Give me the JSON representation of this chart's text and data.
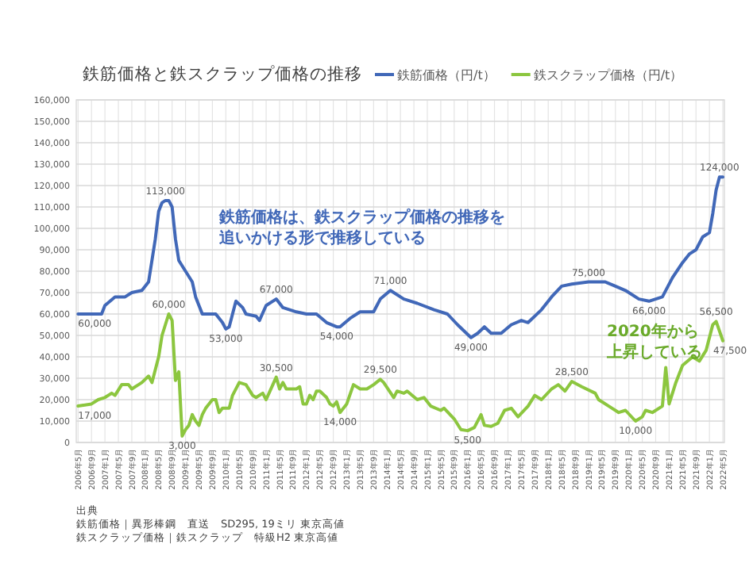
{
  "chart_data": {
    "type": "line",
    "title": "鉄筋価格と鉄スクラップ価格の推移",
    "xlim": [
      "2006-04-15",
      "2022-05-15"
    ],
    "xticks": [
      {
        "value": "2006-05",
        "label": "2006年5月"
      },
      {
        "value": "2006-09",
        "label": "2006年9月"
      },
      {
        "value": "2007-01",
        "label": "2007年1月"
      },
      {
        "value": "2007-05",
        "label": "2007年5月"
      },
      {
        "value": "2007-09",
        "label": "2007年9月"
      },
      {
        "value": "2008-01",
        "label": "2008年1月"
      },
      {
        "value": "2008-05",
        "label": "2008年5月"
      },
      {
        "value": "2008-09",
        "label": "2008年9月"
      },
      {
        "value": "2009-01",
        "label": "2009年1月"
      },
      {
        "value": "2009-05",
        "label": "2009年5月"
      },
      {
        "value": "2009-09",
        "label": "2009年9月"
      },
      {
        "value": "2010-01",
        "label": "2010年1月"
      },
      {
        "value": "2010-05",
        "label": "2010年5月"
      },
      {
        "value": "2010-09",
        "label": "2010年9月"
      },
      {
        "value": "2011-01",
        "label": "2011年1月"
      },
      {
        "value": "2011-05",
        "label": "2011年5月"
      },
      {
        "value": "2011-09",
        "label": "2011年9月"
      },
      {
        "value": "2012-01",
        "label": "2012年1月"
      },
      {
        "value": "2012-05",
        "label": "2012年5月"
      },
      {
        "value": "2012-09",
        "label": "2012年9月"
      },
      {
        "value": "2013-01",
        "label": "2013年1月"
      },
      {
        "value": "2013-05",
        "label": "2013年5月"
      },
      {
        "value": "2013-09",
        "label": "2013年9月"
      },
      {
        "value": "2014-01",
        "label": "2014年1月"
      },
      {
        "value": "2014-05",
        "label": "2014年5月"
      },
      {
        "value": "2014-09",
        "label": "2014年9月"
      },
      {
        "value": "2015-01",
        "label": "2015年1月"
      },
      {
        "value": "2015-05",
        "label": "2015年5月"
      },
      {
        "value": "2015-09",
        "label": "2015年9月"
      },
      {
        "value": "2016-01",
        "label": "2016年1月"
      },
      {
        "value": "2016-05",
        "label": "2016年5月"
      },
      {
        "value": "2016-09",
        "label": "2016年9月"
      },
      {
        "value": "2017-01",
        "label": "2017年1月"
      },
      {
        "value": "2017-05",
        "label": "2017年5月"
      },
      {
        "value": "2017-09",
        "label": "2017年9月"
      },
      {
        "value": "2018-01",
        "label": "2018年1月"
      },
      {
        "value": "2018-05",
        "label": "2018年5月"
      },
      {
        "value": "2018-09",
        "label": "2018年9月"
      },
      {
        "value": "2019-01",
        "label": "2019年1月"
      },
      {
        "value": "2019-05",
        "label": "2019年5月"
      },
      {
        "value": "2019-09",
        "label": "2019年9月"
      },
      {
        "value": "2020-01",
        "label": "2020年1月"
      },
      {
        "value": "2020-05",
        "label": "2020年5月"
      },
      {
        "value": "2020-09",
        "label": "2020年9月"
      },
      {
        "value": "2021-01",
        "label": "2021年1月"
      },
      {
        "value": "2021-05",
        "label": "2021年5月"
      },
      {
        "value": "2021-09",
        "label": "2021年9月"
      },
      {
        "value": "2022-01",
        "label": "2022年1月"
      },
      {
        "value": "2022-05",
        "label": "2022年5月"
      }
    ],
    "ylim": [
      0,
      160000
    ],
    "yticks": [
      0,
      {
        "value": 10000,
        "label": "10,000"
      },
      {
        "value": 20000,
        "label": "20,000"
      },
      {
        "value": 30000,
        "label": "30,000"
      },
      {
        "value": 40000,
        "label": "40,000"
      },
      {
        "value": 50000,
        "label": "50,000"
      },
      {
        "value": 60000,
        "label": "60,000"
      },
      {
        "value": 70000,
        "label": "70,000"
      },
      {
        "value": 80000,
        "label": "80,000"
      },
      {
        "value": 90000,
        "label": "90,000"
      },
      {
        "value": 100000,
        "label": "100,000"
      },
      {
        "value": 110000,
        "label": "110,000"
      },
      {
        "value": 120000,
        "label": "120,000"
      },
      {
        "value": 130000,
        "label": "130,000"
      },
      {
        "value": 140000,
        "label": "140,000"
      },
      {
        "value": 150000,
        "label": "150,000"
      },
      {
        "value": 160000,
        "label": "160,000"
      }
    ],
    "grid": true,
    "legend": "top",
    "marker": "none",
    "line_style": "solid",
    "series": [
      {
        "name": "鉄筋価格（円/t）",
        "color": "#4168b8",
        "x": [
          "2006-05",
          "2006-12",
          "2007-01",
          "2007-04",
          "2007-07",
          "2007-09",
          "2007-12",
          "2008-02",
          "2008-04",
          "2008-05",
          "2008-06",
          "2008-07",
          "2008-08",
          "2008-09",
          "2008-10",
          "2008-11",
          "2009-01",
          "2009-03",
          "2009-04",
          "2009-05",
          "2009-06",
          "2009-10",
          "2009-12",
          "2010-01",
          "2010-02",
          "2010-04",
          "2010-06",
          "2010-07",
          "2010-10",
          "2010-11",
          "2011-01",
          "2011-04",
          "2011-06",
          "2011-10",
          "2012-01",
          "2012-04",
          "2012-07",
          "2012-10",
          "2012-11",
          "2013-02",
          "2013-05",
          "2013-09",
          "2013-11",
          "2014-02",
          "2014-06",
          "2014-10",
          "2015-03",
          "2015-07",
          "2015-10",
          "2016-02",
          "2016-04",
          "2016-06",
          "2016-08",
          "2016-11",
          "2017-02",
          "2017-05",
          "2017-07",
          "2017-11",
          "2018-02",
          "2018-05",
          "2018-08",
          "2019-01",
          "2019-06",
          "2019-09",
          "2019-12",
          "2020-04",
          "2020-07",
          "2020-11",
          "2021-02",
          "2021-05",
          "2021-07",
          "2021-09",
          "2021-11",
          "2022-01",
          "2022-02",
          "2022-03",
          "2022-04",
          "2022-05"
        ],
        "values": [
          60000,
          60000,
          64000,
          68000,
          68000,
          70000,
          71000,
          75000,
          95000,
          108000,
          112000,
          113000,
          113000,
          110000,
          95000,
          85000,
          80000,
          75000,
          68000,
          64000,
          60000,
          60000,
          56000,
          53000,
          54000,
          66000,
          63000,
          60000,
          59000,
          57000,
          64000,
          67000,
          63000,
          61000,
          60000,
          60000,
          56000,
          54000,
          54000,
          58000,
          61000,
          61000,
          67000,
          71000,
          67000,
          65000,
          62000,
          60000,
          55000,
          49000,
          51000,
          54000,
          51000,
          51000,
          55000,
          57000,
          56000,
          62000,
          68000,
          73000,
          74000,
          75000,
          75000,
          73000,
          71000,
          67000,
          66000,
          68000,
          77000,
          84000,
          88000,
          90000,
          96000,
          98000,
          107000,
          118000,
          124000,
          124000
        ],
        "value_labels": [
          "60,000",
          null,
          null,
          null,
          null,
          null,
          null,
          null,
          null,
          null,
          null,
          "113,000",
          null,
          null,
          null,
          null,
          null,
          null,
          null,
          null,
          null,
          null,
          null,
          "53,000",
          null,
          null,
          null,
          null,
          null,
          null,
          null,
          "67,000",
          null,
          null,
          null,
          null,
          null,
          "54,000",
          null,
          null,
          null,
          null,
          null,
          "71,000",
          null,
          null,
          null,
          null,
          null,
          "49,000",
          null,
          null,
          null,
          null,
          null,
          null,
          null,
          null,
          null,
          null,
          null,
          "75,000",
          null,
          null,
          null,
          null,
          "66,000",
          null,
          null,
          null,
          null,
          null,
          null,
          null,
          null,
          null,
          "124,000",
          null
        ]
      },
      {
        "name": "鉄スクラップ価格（円/t）",
        "color": "#8cc63f",
        "x": [
          "2006-05",
          "2006-09",
          "2006-11",
          "2007-01",
          "2007-03",
          "2007-04",
          "2007-06",
          "2007-08",
          "2007-09",
          "2007-11",
          "2007-12",
          "2008-02",
          "2008-03",
          "2008-05",
          "2008-06",
          "2008-07",
          "2008-08",
          "2008-09",
          "2008-10",
          "2008-11",
          "2008-12",
          "2009-01",
          "2009-02",
          "2009-03",
          "2009-04",
          "2009-05",
          "2009-06",
          "2009-07",
          "2009-09",
          "2009-10",
          "2009-11",
          "2009-12",
          "2010-02",
          "2010-03",
          "2010-05",
          "2010-07",
          "2010-09",
          "2010-10",
          "2010-12",
          "2011-01",
          "2011-03",
          "2011-04",
          "2011-05",
          "2011-06",
          "2011-07",
          "2011-10",
          "2011-11",
          "2011-12",
          "2012-01",
          "2012-02",
          "2012-03",
          "2012-04",
          "2012-05",
          "2012-07",
          "2012-08",
          "2012-09",
          "2012-10",
          "2012-11",
          "2013-01",
          "2013-03",
          "2013-05",
          "2013-07",
          "2013-09",
          "2013-11",
          "2013-12",
          "2014-03",
          "2014-04",
          "2014-06",
          "2014-07",
          "2014-10",
          "2014-12",
          "2015-02",
          "2015-05",
          "2015-06",
          "2015-09",
          "2015-11",
          "2016-01",
          "2016-03",
          "2016-05",
          "2016-06",
          "2016-08",
          "2016-10",
          "2016-12",
          "2017-02",
          "2017-04",
          "2017-07",
          "2017-09",
          "2017-11",
          "2018-02",
          "2018-04",
          "2018-06",
          "2018-08",
          "2018-11",
          "2019-03",
          "2019-04",
          "2019-07",
          "2019-10",
          "2019-12",
          "2020-03",
          "2020-05",
          "2020-06",
          "2020-08",
          "2020-11",
          "2020-12",
          "2021-01",
          "2021-03",
          "2021-05",
          "2021-08",
          "2021-10",
          "2021-12",
          "2022-02",
          "2022-03",
          "2022-05"
        ],
        "values": [
          17000,
          18000,
          20000,
          21000,
          23000,
          22000,
          27000,
          27000,
          25000,
          27000,
          28000,
          31000,
          28000,
          40000,
          50000,
          55000,
          60000,
          57000,
          29000,
          33000,
          3000,
          6000,
          8000,
          13000,
          10000,
          8000,
          13000,
          16000,
          20000,
          20000,
          14000,
          16000,
          16000,
          22000,
          28000,
          27000,
          22000,
          21000,
          23000,
          20000,
          27000,
          30500,
          25000,
          28000,
          25000,
          25000,
          26000,
          18000,
          18000,
          22000,
          20000,
          24000,
          24000,
          21000,
          18000,
          17000,
          19000,
          14000,
          18000,
          27000,
          25000,
          25000,
          27000,
          29500,
          28000,
          21000,
          24000,
          23000,
          24000,
          20000,
          21000,
          17000,
          15000,
          16000,
          11000,
          6000,
          5500,
          7000,
          13000,
          8000,
          7500,
          9000,
          15000,
          16000,
          12000,
          17000,
          22000,
          20000,
          25000,
          27000,
          24000,
          28500,
          26000,
          23000,
          20000,
          17000,
          14000,
          15000,
          10000,
          12000,
          15000,
          14000,
          17000,
          35000,
          18000,
          28000,
          36000,
          40000,
          38000,
          43000,
          55000,
          56500,
          47500
        ],
        "value_labels": [
          "17,000",
          null,
          null,
          null,
          null,
          null,
          null,
          null,
          null,
          null,
          null,
          null,
          null,
          null,
          null,
          null,
          "60,000",
          null,
          null,
          null,
          "3,000",
          null,
          null,
          null,
          null,
          null,
          null,
          null,
          null,
          null,
          null,
          null,
          null,
          null,
          null,
          null,
          null,
          null,
          null,
          null,
          null,
          "30,500",
          null,
          null,
          null,
          null,
          null,
          null,
          null,
          null,
          null,
          null,
          null,
          null,
          null,
          null,
          null,
          "14,000",
          null,
          null,
          null,
          null,
          null,
          "29,500",
          null,
          null,
          null,
          null,
          null,
          null,
          null,
          null,
          null,
          null,
          null,
          null,
          "5,500",
          null,
          null,
          null,
          null,
          null,
          null,
          null,
          null,
          null,
          null,
          null,
          null,
          null,
          null,
          "28,500",
          null,
          null,
          null,
          null,
          null,
          null,
          "10,000",
          null,
          null,
          null,
          null,
          null,
          null,
          null,
          null,
          null,
          null,
          null,
          null,
          "56,500",
          "47,500"
        ]
      }
    ],
    "annotations": [
      "鉄筋価格は、鉄スクラップ価格の推移を追いかける形で推移している",
      "2020年から上昇している",
      "出典",
      "鉄筋価格｜異形棒鋼　直送　SD295, 19ミリ 東京高値",
      "鉄スクラップ価格｜鉄スクラップ　特級H2 東京高値"
    ]
  }
}
